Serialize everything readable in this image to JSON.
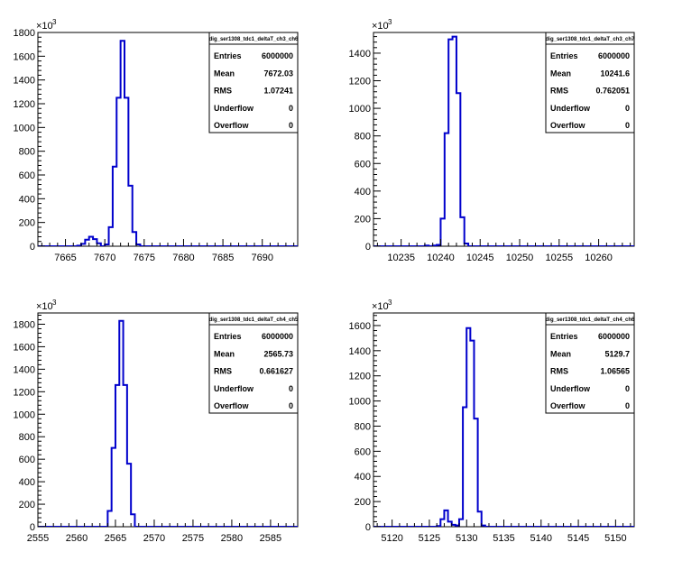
{
  "chart_data": [
    {
      "type": "histogram",
      "stats_title": "dig_ser1308_tdc1_deltaT_ch3_ch6",
      "stats": [
        {
          "label": "Entries",
          "value": "6000000"
        },
        {
          "label": "Mean",
          "value": "7672.03"
        },
        {
          "label": "RMS",
          "value": "1.07241"
        },
        {
          "label": "Underflow",
          "value": "0"
        },
        {
          "label": "Overflow",
          "value": "0"
        }
      ],
      "xlim": [
        7661.5,
        7694.5
      ],
      "ylim": [
        0,
        1800
      ],
      "x_ticks": [
        7665,
        7670,
        7675,
        7680,
        7685,
        7690
      ],
      "y_ticks": [
        0,
        200,
        400,
        600,
        800,
        1000,
        1200,
        1400,
        1600,
        1800
      ],
      "y_multiplier": "×10",
      "y_multiplier_exp": "3",
      "color": "#0000cc",
      "bin_width": 0.5,
      "bin_edges_start": 7661.5,
      "values": [
        0,
        0,
        0,
        0,
        0,
        0,
        0,
        0,
        0,
        0,
        5,
        20,
        55,
        80,
        60,
        25,
        0,
        15,
        160,
        670,
        1250,
        1730,
        1250,
        510,
        120,
        15,
        0,
        0,
        0,
        0,
        0,
        0,
        0,
        0,
        0,
        0,
        0,
        0,
        0,
        0,
        0,
        0,
        0,
        0,
        0,
        0,
        0,
        0,
        0,
        0,
        0,
        0,
        0,
        0,
        0,
        0,
        0,
        0,
        0,
        0,
        0,
        0,
        0,
        0,
        0,
        0
      ]
    },
    {
      "type": "histogram",
      "stats_title": "dig_ser1308_tdc1_deltaT_ch3_ch7",
      "stats": [
        {
          "label": "Entries",
          "value": "6000000"
        },
        {
          "label": "Mean",
          "value": "10241.6"
        },
        {
          "label": "RMS",
          "value": "0.762051"
        },
        {
          "label": "Underflow",
          "value": "0"
        },
        {
          "label": "Overflow",
          "value": "0"
        }
      ],
      "xlim": [
        10231.5,
        10264.5
      ],
      "ylim": [
        0,
        1550
      ],
      "x_ticks": [
        10235,
        10240,
        10245,
        10250,
        10255,
        10260
      ],
      "y_ticks": [
        0,
        200,
        400,
        600,
        800,
        1000,
        1200,
        1400
      ],
      "y_multiplier": "×10",
      "y_multiplier_exp": "3",
      "color": "#0000cc",
      "bin_width": 0.5,
      "bin_edges_start": 10231.5,
      "values": [
        0,
        0,
        0,
        0,
        0,
        0,
        0,
        0,
        0,
        0,
        0,
        0,
        0,
        5,
        0,
        5,
        10,
        200,
        820,
        1500,
        1520,
        1110,
        210,
        20,
        0,
        0,
        0,
        0,
        0,
        0,
        0,
        0,
        0,
        0,
        0,
        0,
        0,
        0,
        0,
        0,
        0,
        0,
        0,
        0,
        0,
        0,
        0,
        0,
        0,
        0,
        0,
        0,
        0,
        0,
        0,
        0,
        0,
        0,
        0,
        0,
        0,
        0,
        0,
        0,
        0,
        0
      ]
    },
    {
      "type": "histogram",
      "stats_title": "dig_ser1308_tdc1_deltaT_ch4_ch5",
      "stats": [
        {
          "label": "Entries",
          "value": "6000000"
        },
        {
          "label": "Mean",
          "value": "2565.73"
        },
        {
          "label": "RMS",
          "value": "0.661627"
        },
        {
          "label": "Underflow",
          "value": "0"
        },
        {
          "label": "Overflow",
          "value": "0"
        }
      ],
      "xlim": [
        2555,
        2588.5
      ],
      "ylim": [
        0,
        1900
      ],
      "x_ticks": [
        2555,
        2560,
        2565,
        2570,
        2575,
        2580,
        2585
      ],
      "y_ticks": [
        0,
        200,
        400,
        600,
        800,
        1000,
        1200,
        1400,
        1600,
        1800
      ],
      "y_multiplier": "×10",
      "y_multiplier_exp": "3",
      "color": "#0000cc",
      "bin_width": 0.5,
      "bin_edges_start": 2555,
      "values": [
        0,
        0,
        0,
        0,
        0,
        0,
        0,
        0,
        0,
        0,
        0,
        0,
        0,
        0,
        0,
        0,
        0,
        0,
        140,
        700,
        1260,
        1830,
        1260,
        560,
        110,
        0,
        0,
        0,
        0,
        0,
        0,
        0,
        0,
        0,
        0,
        0,
        0,
        0,
        0,
        0,
        0,
        0,
        0,
        0,
        0,
        0,
        0,
        0,
        0,
        0,
        0,
        0,
        0,
        0,
        0,
        0,
        0,
        0,
        0,
        0,
        0,
        0,
        0,
        0,
        0,
        0,
        0
      ]
    },
    {
      "type": "histogram",
      "stats_title": "dig_ser1308_tdc1_deltaT_ch4_ch6",
      "stats": [
        {
          "label": "Entries",
          "value": "6000000"
        },
        {
          "label": "Mean",
          "value": "5129.7"
        },
        {
          "label": "RMS",
          "value": "1.06565"
        },
        {
          "label": "Underflow",
          "value": "0"
        },
        {
          "label": "Overflow",
          "value": "0"
        }
      ],
      "xlim": [
        5117.5,
        5152.5
      ],
      "ylim": [
        0,
        1700
      ],
      "x_ticks": [
        5120,
        5125,
        5130,
        5135,
        5140,
        5145,
        5150
      ],
      "y_ticks": [
        0,
        200,
        400,
        600,
        800,
        1000,
        1200,
        1400,
        1600
      ],
      "y_multiplier": "×10",
      "y_multiplier_exp": "3",
      "color": "#0000cc",
      "bin_width": 0.5,
      "bin_edges_start": 5117.5,
      "values": [
        0,
        0,
        0,
        0,
        0,
        0,
        0,
        0,
        0,
        0,
        0,
        0,
        0,
        0,
        0,
        0,
        0,
        5,
        60,
        130,
        40,
        15,
        10,
        60,
        950,
        1580,
        1480,
        860,
        120,
        10,
        0,
        0,
        0,
        0,
        0,
        0,
        0,
        0,
        0,
        0,
        0,
        0,
        0,
        0,
        0,
        0,
        0,
        0,
        0,
        0,
        0,
        0,
        0,
        0,
        0,
        0,
        0,
        0,
        0,
        0,
        0,
        0,
        0,
        0,
        0,
        0,
        0,
        0,
        0,
        0
      ]
    }
  ]
}
